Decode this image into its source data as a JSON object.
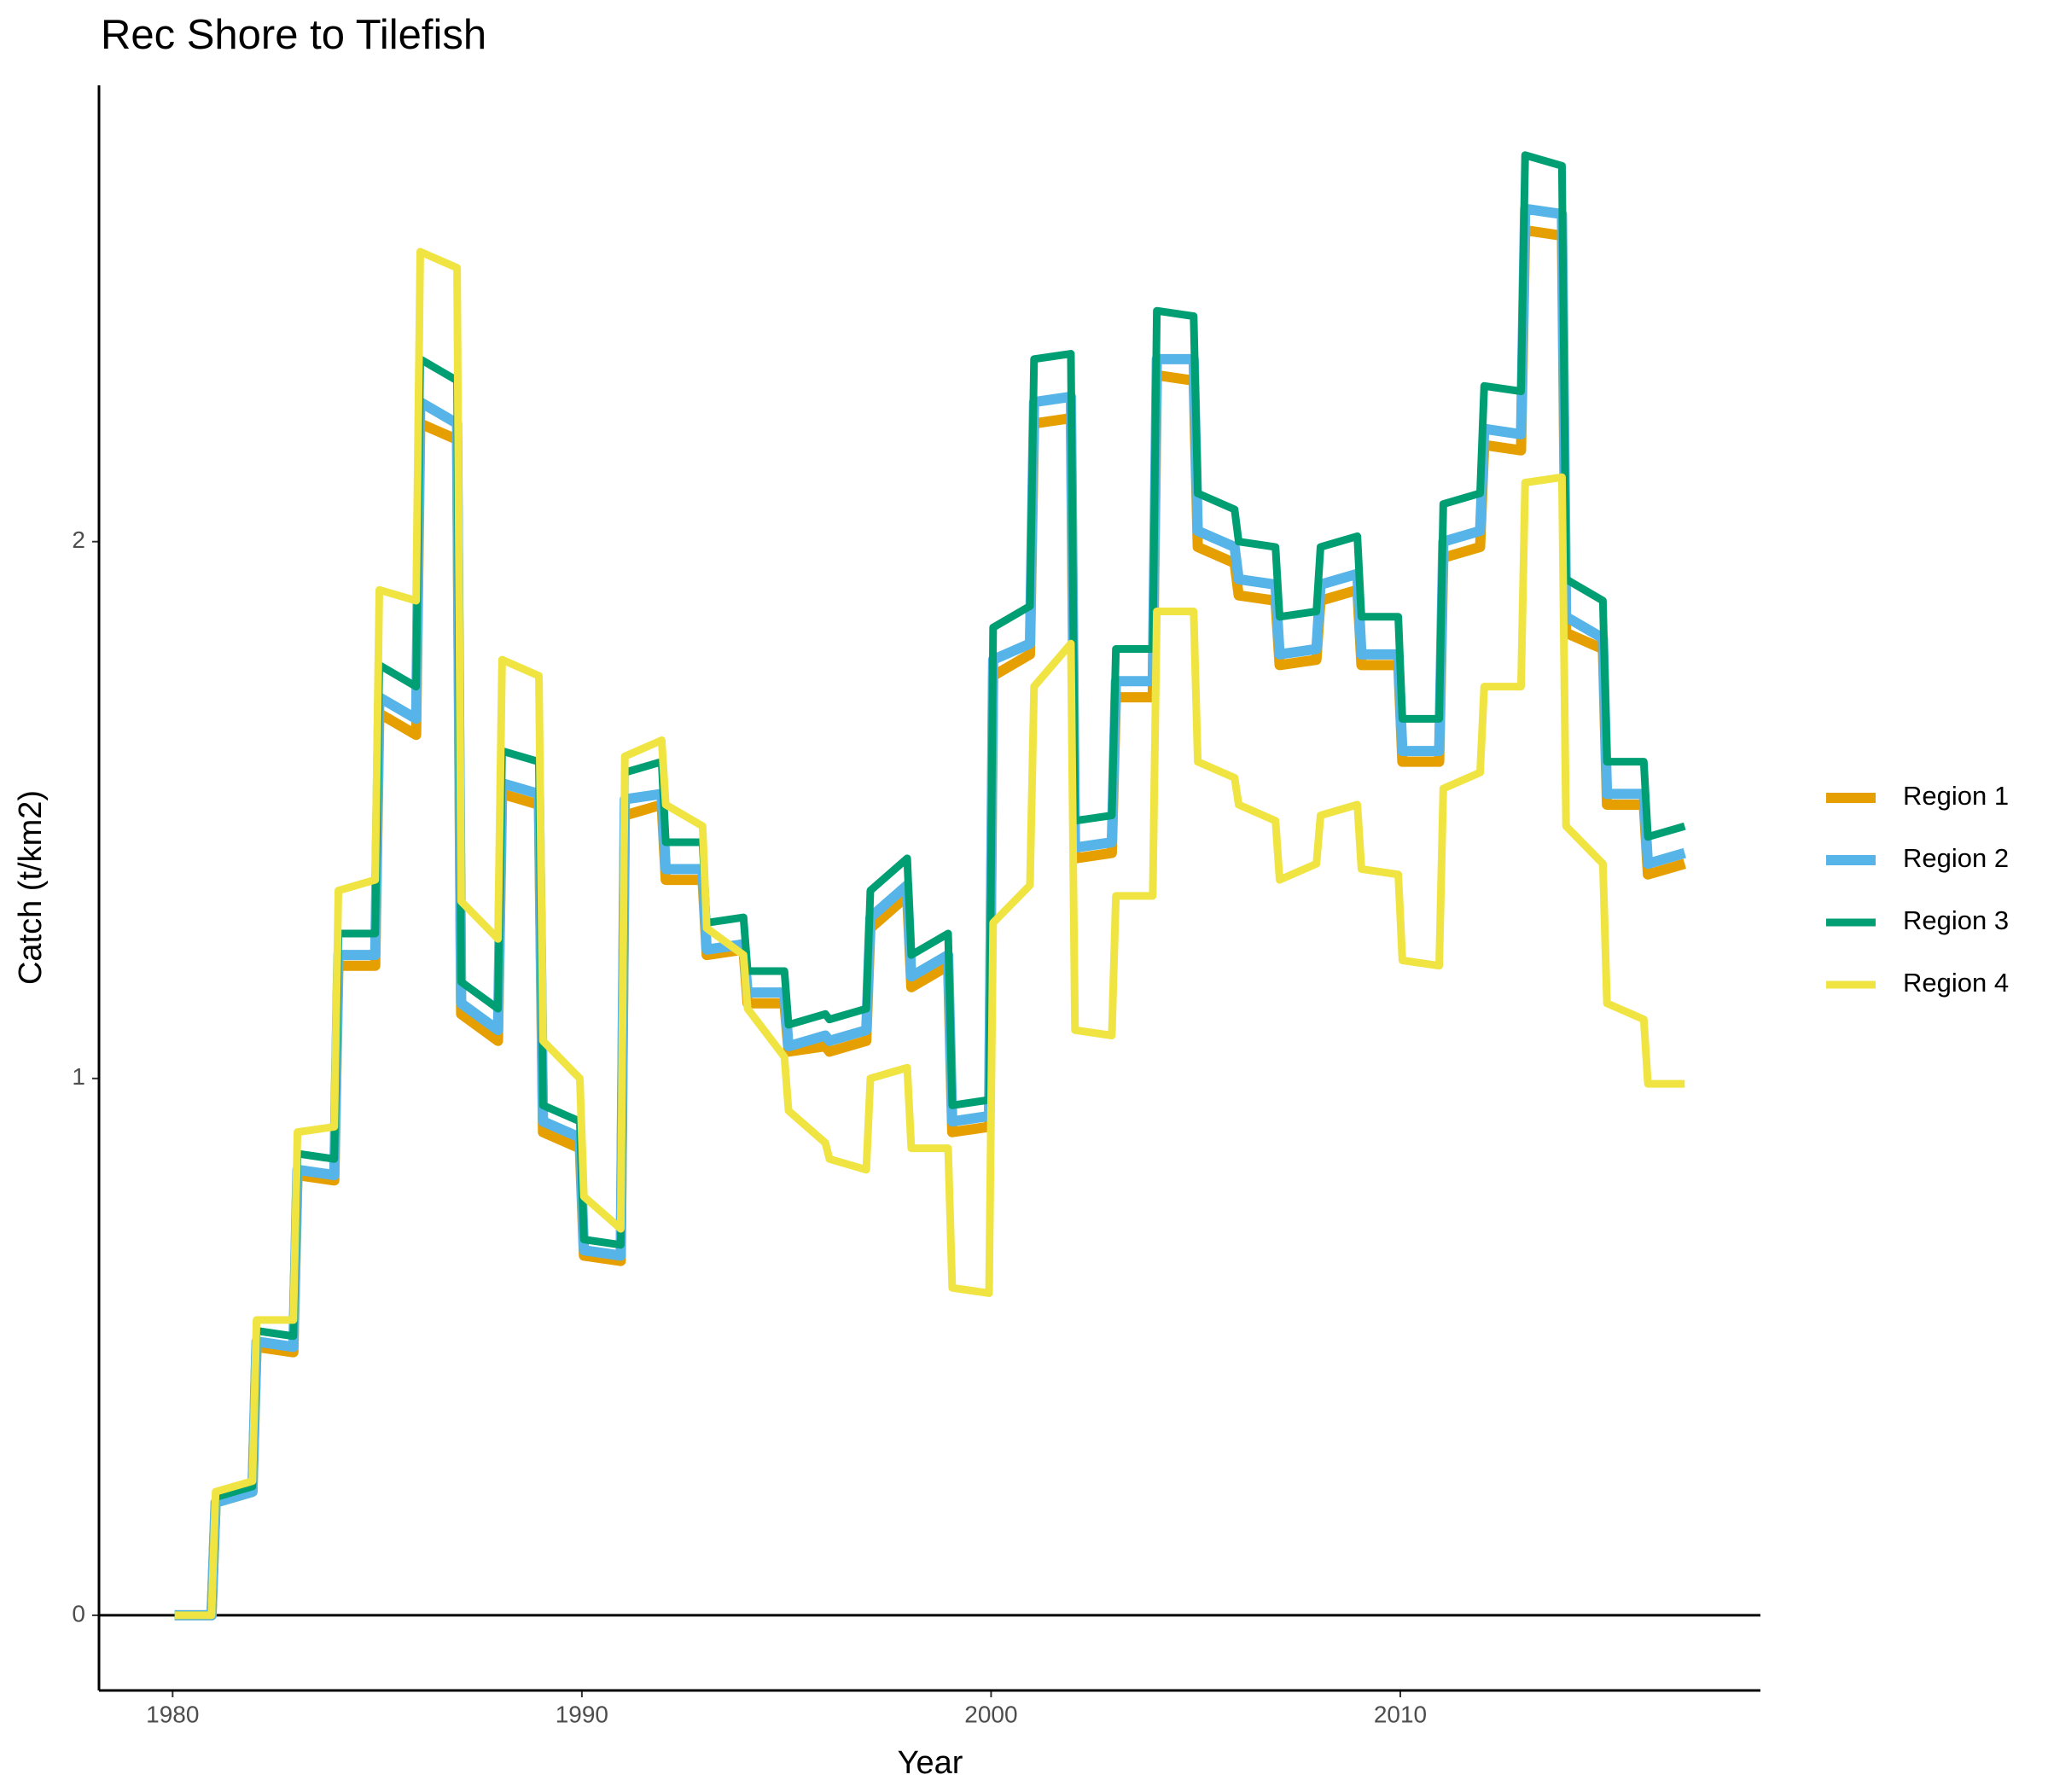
{
  "chart_data": {
    "type": "line",
    "title": "Rec Shore to Tilefish",
    "x_label": "Year",
    "y_label": "Catch (t/km2)",
    "x": [
      1980.05,
      1980.95,
      1981.05,
      1981.95,
      1982.05,
      1982.95,
      1983.05,
      1983.95,
      1984.05,
      1984.95,
      1985.05,
      1985.95,
      1986.05,
      1986.95,
      1987.05,
      1987.95,
      1988.05,
      1988.95,
      1989.05,
      1989.95,
      1990.05,
      1990.95,
      1991.05,
      1991.95,
      1992.05,
      1992.95,
      1993.05,
      1993.95,
      1994.05,
      1994.95,
      1995.05,
      1995.95,
      1996.05,
      1996.95,
      1997.05,
      1997.95,
      1998.05,
      1998.95,
      1999.05,
      1999.95,
      2000.05,
      2000.95,
      2001.05,
      2001.95,
      2002.05,
      2002.95,
      2003.05,
      2003.95,
      2004.05,
      2004.95,
      2005.05,
      2005.95,
      2006.05,
      2006.95,
      2007.05,
      2007.95,
      2008.05,
      2008.95,
      2009.05,
      2009.95,
      2010.05,
      2010.95,
      2011.05,
      2011.95,
      2012.05,
      2012.95,
      2013.05,
      2013.95,
      2014.05,
      2014.95,
      2015.05,
      2015.95,
      2016.05,
      2016.95
    ],
    "series": [
      {
        "name": "Region 1",
        "color": "#E69F00",
        "width": 12,
        "values": [
          0,
          0,
          0.21,
          0.23,
          0.5,
          0.49,
          0.82,
          0.81,
          1.21,
          1.21,
          1.68,
          1.64,
          2.22,
          2.19,
          1.12,
          1.07,
          1.53,
          1.51,
          0.9,
          0.87,
          0.67,
          0.66,
          1.49,
          1.51,
          1.37,
          1.37,
          1.23,
          1.24,
          1.14,
          1.14,
          1.05,
          1.06,
          1.05,
          1.07,
          1.28,
          1.34,
          1.17,
          1.21,
          0.9,
          0.91,
          1.75,
          1.79,
          2.22,
          2.23,
          1.41,
          1.42,
          1.71,
          1.71,
          2.31,
          2.3,
          1.99,
          1.96,
          1.9,
          1.89,
          1.77,
          1.78,
          1.89,
          1.91,
          1.77,
          1.77,
          1.59,
          1.59,
          1.97,
          1.99,
          2.18,
          2.17,
          2.58,
          2.57,
          1.83,
          1.8,
          1.51,
          1.51,
          1.38,
          1.4
        ]
      },
      {
        "name": "Region 2",
        "color": "#56B4E9",
        "width": 12,
        "values": [
          0,
          0,
          0.21,
          0.23,
          0.51,
          0.5,
          0.83,
          0.82,
          1.23,
          1.23,
          1.71,
          1.67,
          2.26,
          2.22,
          1.14,
          1.09,
          1.55,
          1.53,
          0.92,
          0.89,
          0.68,
          0.67,
          1.52,
          1.53,
          1.39,
          1.39,
          1.24,
          1.25,
          1.16,
          1.16,
          1.06,
          1.08,
          1.07,
          1.09,
          1.3,
          1.36,
          1.19,
          1.23,
          0.92,
          0.93,
          1.78,
          1.81,
          2.26,
          2.27,
          1.43,
          1.44,
          1.74,
          1.74,
          2.34,
          2.34,
          2.02,
          1.99,
          1.93,
          1.92,
          1.79,
          1.8,
          1.92,
          1.94,
          1.79,
          1.79,
          1.61,
          1.61,
          2,
          2.02,
          2.21,
          2.2,
          2.62,
          2.61,
          1.86,
          1.82,
          1.53,
          1.53,
          1.4,
          1.42
        ]
      },
      {
        "name": "Region 3",
        "color": "#009E73",
        "width": 9,
        "values": [
          0,
          0,
          0.22,
          0.24,
          0.53,
          0.52,
          0.86,
          0.85,
          1.27,
          1.27,
          1.77,
          1.73,
          2.34,
          2.3,
          1.18,
          1.13,
          1.61,
          1.59,
          0.95,
          0.92,
          0.7,
          0.69,
          1.57,
          1.59,
          1.44,
          1.44,
          1.29,
          1.3,
          1.2,
          1.2,
          1.1,
          1.12,
          1.11,
          1.13,
          1.35,
          1.41,
          1.23,
          1.27,
          0.95,
          0.96,
          1.84,
          1.88,
          2.34,
          2.35,
          1.48,
          1.49,
          1.8,
          1.8,
          2.43,
          2.42,
          2.09,
          2.06,
          2,
          1.99,
          1.86,
          1.87,
          1.99,
          2.01,
          1.86,
          1.86,
          1.67,
          1.67,
          2.07,
          2.09,
          2.29,
          2.28,
          2.72,
          2.7,
          1.93,
          1.89,
          1.59,
          1.59,
          1.45,
          1.47
        ]
      },
      {
        "name": "Region 4",
        "color": "#F0E442",
        "width": 9,
        "values": [
          0,
          0,
          0.23,
          0.25,
          0.55,
          0.55,
          0.9,
          0.91,
          1.35,
          1.37,
          1.91,
          1.89,
          2.54,
          2.51,
          1.33,
          1.26,
          1.78,
          1.75,
          1.07,
          1,
          0.78,
          0.72,
          1.6,
          1.63,
          1.51,
          1.47,
          1.28,
          1.23,
          1.13,
          1.04,
          0.94,
          0.88,
          0.85,
          0.83,
          1,
          1.02,
          0.87,
          0.87,
          0.61,
          0.6,
          1.29,
          1.36,
          1.73,
          1.81,
          1.09,
          1.08,
          1.34,
          1.34,
          1.87,
          1.87,
          1.59,
          1.56,
          1.51,
          1.48,
          1.37,
          1.4,
          1.49,
          1.51,
          1.39,
          1.38,
          1.22,
          1.21,
          1.54,
          1.57,
          1.73,
          1.73,
          2.11,
          2.12,
          1.47,
          1.4,
          1.14,
          1.11,
          0.99,
          0.99
        ]
      }
    ],
    "xlim": [
      1978.2,
      2018.8
    ],
    "ylim": [
      -0.14,
      2.85
    ],
    "xticks": [
      1980,
      1990,
      2000,
      2010
    ],
    "yticks": [
      0,
      1,
      2
    ],
    "hline": 0,
    "legend": "right"
  }
}
